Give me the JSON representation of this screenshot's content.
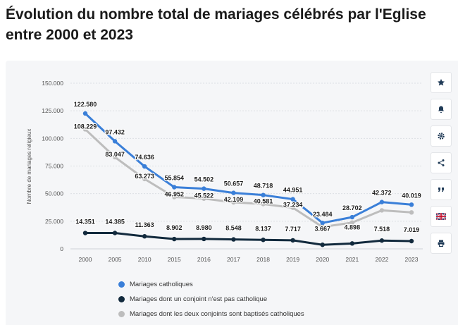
{
  "title": "Évolution du nombre total de mariages célébrés par l'Eglise entre 2000 et 2023",
  "toolbar": [
    {
      "name": "star-icon"
    },
    {
      "name": "bell-icon"
    },
    {
      "name": "gear-icon"
    },
    {
      "name": "share-icon"
    },
    {
      "name": "quote-icon"
    },
    {
      "name": "flag-uk-icon"
    },
    {
      "name": "print-icon"
    }
  ],
  "chart_data": {
    "type": "line",
    "ylabel": "Nombre de mariages religieux",
    "xlabel": "",
    "ylim": [
      0,
      150000
    ],
    "yticks": [
      0,
      25000,
      50000,
      75000,
      100000,
      125000,
      150000
    ],
    "ytick_labels": [
      "0",
      "25.000",
      "50.000",
      "75.000",
      "100.000",
      "125.000",
      "150.000"
    ],
    "categories": [
      "2000",
      "2005",
      "2010",
      "2015",
      "2016",
      "2017",
      "2018",
      "2019",
      "2020",
      "2021",
      "2022",
      "2023"
    ],
    "grid": true,
    "legend_position": "bottom",
    "series": [
      {
        "name": "Mariages catholiques",
        "color": "#3a7fd8",
        "values": [
          122580,
          97432,
          74636,
          55854,
          54502,
          50657,
          48718,
          44951,
          23484,
          28702,
          42372,
          40019
        ],
        "labels": [
          "122.580",
          "97.432",
          "74.636",
          "55.854",
          "54.502",
          "50.657",
          "48.718",
          "44.951",
          "23.484",
          "28.702",
          "42.372",
          "40.019"
        ]
      },
      {
        "name": "Mariages dont un conjoint n'est pas catholique",
        "color": "#122a3d",
        "values": [
          14351,
          14385,
          11363,
          8902,
          8980,
          8548,
          8137,
          7717,
          3667,
          4898,
          7518,
          7019
        ],
        "labels": [
          "14.351",
          "14.385",
          "11.363",
          "8.902",
          "8.980",
          "8.548",
          "8.137",
          "7.717",
          "3.667",
          "4.898",
          "7.518",
          "7.019"
        ]
      },
      {
        "name": "Mariages dont les deux conjoints sont baptisés catholiques",
        "color": "#bdbdbd",
        "values": [
          108229,
          83047,
          63273,
          46952,
          45522,
          42109,
          40581,
          37234,
          19817,
          23804,
          34854,
          33000
        ],
        "labels": [
          "108.229",
          "83.047",
          "63.273",
          "46.952",
          "45.522",
          "42.109",
          "40.581",
          "37.234",
          "",
          "",
          "",
          ""
        ]
      }
    ]
  }
}
